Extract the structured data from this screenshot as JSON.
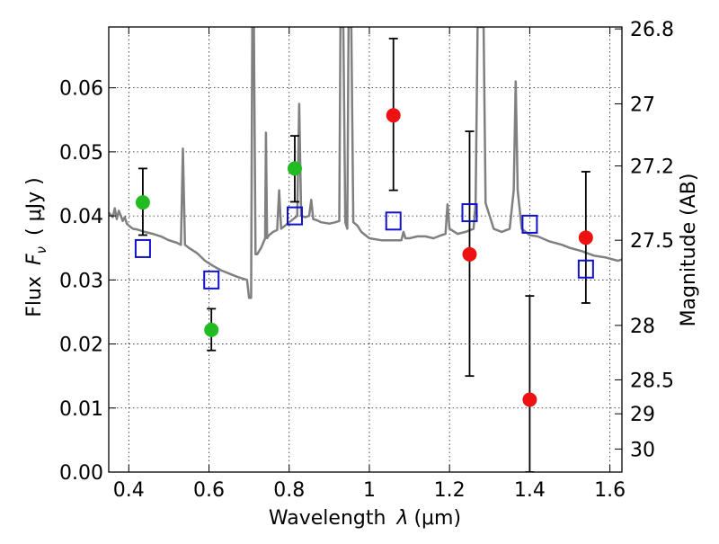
{
  "colors": {
    "spectrum": "#808080",
    "photometry_green": "#22bb22",
    "photometry_red": "#ee1111",
    "model_box": "#1111cc",
    "errorbar": "#000000"
  },
  "chart_data": {
    "type": "scatter",
    "title": "",
    "xlabel_prefix": "Wavelength",
    "xlabel_symbol": "λ",
    "xlabel_unit": "(μm)",
    "ylabel_prefix": "Flux",
    "ylabel_symbol": "F",
    "ylabel_subscript": "ν",
    "ylabel_unit": "( μJy )",
    "y2label": "Magnitude (AB)",
    "xlim": [
      0.35,
      1.63
    ],
    "ylim": [
      0.0,
      0.0695
    ],
    "grid": true,
    "x_ticks": [
      0.4,
      0.6,
      0.8,
      1.0,
      1.2,
      1.4,
      1.6
    ],
    "x_tick_labels": [
      "0.4",
      "0.6",
      "0.8",
      "1",
      "1.2",
      "1.4",
      "1.6"
    ],
    "y_ticks": [
      0.0,
      0.01,
      0.02,
      0.03,
      0.04,
      0.05,
      0.06
    ],
    "y_tick_labels": [
      "0.00",
      "0.01",
      "0.02",
      "0.03",
      "0.04",
      "0.05",
      "0.06"
    ],
    "y2_ticks": [
      {
        "label": "26.8",
        "flux": 0.0692
      },
      {
        "label": "27",
        "flux": 0.0575
      },
      {
        "label": "27.2",
        "flux": 0.0478
      },
      {
        "label": "27.5",
        "flux": 0.0362
      },
      {
        "label": "28",
        "flux": 0.0229
      },
      {
        "label": "28.5",
        "flux": 0.0144
      },
      {
        "label": "29",
        "flux": 0.0091
      },
      {
        "label": "30",
        "flux": 0.0036
      }
    ],
    "series": [
      {
        "kind": "line",
        "color": "#808080",
        "points": [
          [
            0.35,
            0.0405
          ],
          [
            0.36,
            0.0398
          ],
          [
            0.365,
            0.0412
          ],
          [
            0.37,
            0.0395
          ],
          [
            0.375,
            0.0408
          ],
          [
            0.38,
            0.04
          ],
          [
            0.385,
            0.0392
          ],
          [
            0.39,
            0.0398
          ],
          [
            0.395,
            0.0388
          ],
          [
            0.4,
            0.0385
          ],
          [
            0.41,
            0.038
          ],
          [
            0.42,
            0.0379
          ],
          [
            0.44,
            0.0375
          ],
          [
            0.46,
            0.0372
          ],
          [
            0.48,
            0.0368
          ],
          [
            0.5,
            0.0362
          ],
          [
            0.52,
            0.0358
          ],
          [
            0.53,
            0.0355
          ],
          [
            0.535,
            0.0505
          ],
          [
            0.54,
            0.0355
          ],
          [
            0.55,
            0.035
          ],
          [
            0.57,
            0.0342
          ],
          [
            0.59,
            0.033
          ],
          [
            0.61,
            0.0322
          ],
          [
            0.63,
            0.0315
          ],
          [
            0.65,
            0.031
          ],
          [
            0.67,
            0.0305
          ],
          [
            0.685,
            0.0302
          ],
          [
            0.695,
            0.03
          ],
          [
            0.7,
            0.0272
          ],
          [
            0.705,
            0.0272
          ],
          [
            0.708,
            0.0695
          ],
          [
            0.712,
            0.0695
          ],
          [
            0.716,
            0.034
          ],
          [
            0.72,
            0.034
          ],
          [
            0.73,
            0.035
          ],
          [
            0.74,
            0.0365
          ],
          [
            0.742,
            0.053
          ],
          [
            0.745,
            0.0365
          ],
          [
            0.75,
            0.037
          ],
          [
            0.76,
            0.0375
          ],
          [
            0.77,
            0.0378
          ],
          [
            0.775,
            0.044
          ],
          [
            0.78,
            0.038
          ],
          [
            0.79,
            0.0385
          ],
          [
            0.8,
            0.039
          ],
          [
            0.81,
            0.0395
          ],
          [
            0.82,
            0.04
          ],
          [
            0.825,
            0.0575
          ],
          [
            0.83,
            0.04
          ],
          [
            0.84,
            0.0398
          ],
          [
            0.85,
            0.04
          ],
          [
            0.855,
            0.0425
          ],
          [
            0.86,
            0.0395
          ],
          [
            0.87,
            0.0393
          ],
          [
            0.88,
            0.039
          ],
          [
            0.9,
            0.0388
          ],
          [
            0.915,
            0.039
          ],
          [
            0.925,
            0.0392
          ],
          [
            0.928,
            0.0695
          ],
          [
            0.935,
            0.0695
          ],
          [
            0.94,
            0.039
          ],
          [
            0.945,
            0.038
          ],
          [
            0.948,
            0.0695
          ],
          [
            0.955,
            0.0695
          ],
          [
            0.96,
            0.039
          ],
          [
            0.97,
            0.0385
          ],
          [
            0.98,
            0.0375
          ],
          [
            0.99,
            0.037
          ],
          [
            1.0,
            0.0365
          ],
          [
            1.03,
            0.0362
          ],
          [
            1.06,
            0.0362
          ],
          [
            1.08,
            0.0362
          ],
          [
            1.085,
            0.0375
          ],
          [
            1.09,
            0.0365
          ],
          [
            1.1,
            0.0365
          ],
          [
            1.12,
            0.0368
          ],
          [
            1.14,
            0.0368
          ],
          [
            1.16,
            0.0365
          ],
          [
            1.18,
            0.037
          ],
          [
            1.19,
            0.0372
          ],
          [
            1.195,
            0.0418
          ],
          [
            1.2,
            0.038
          ],
          [
            1.22,
            0.0372
          ],
          [
            1.24,
            0.0375
          ],
          [
            1.26,
            0.038
          ],
          [
            1.265,
            0.042
          ],
          [
            1.27,
            0.0695
          ],
          [
            1.285,
            0.0695
          ],
          [
            1.29,
            0.042
          ],
          [
            1.3,
            0.04
          ],
          [
            1.31,
            0.038
          ],
          [
            1.33,
            0.0375
          ],
          [
            1.35,
            0.038
          ],
          [
            1.36,
            0.044
          ],
          [
            1.365,
            0.061
          ],
          [
            1.37,
            0.044
          ],
          [
            1.38,
            0.038
          ],
          [
            1.4,
            0.037
          ],
          [
            1.42,
            0.0368
          ],
          [
            1.45,
            0.036
          ],
          [
            1.48,
            0.0355
          ],
          [
            1.5,
            0.035
          ],
          [
            1.53,
            0.0345
          ],
          [
            1.56,
            0.0338
          ],
          [
            1.59,
            0.0335
          ],
          [
            1.62,
            0.033
          ],
          [
            1.63,
            0.0332
          ]
        ]
      },
      {
        "kind": "errorbar-points",
        "color": "#22bb22",
        "points": [
          {
            "x": 0.435,
            "y": 0.0421,
            "ylo": 0.037,
            "yhi": 0.0474
          },
          {
            "x": 0.606,
            "y": 0.0222,
            "ylo": 0.019,
            "yhi": 0.0255
          },
          {
            "x": 0.814,
            "y": 0.0474,
            "ylo": 0.0422,
            "yhi": 0.0525
          }
        ]
      },
      {
        "kind": "errorbar-points",
        "color": "#ee1111",
        "points": [
          {
            "x": 1.06,
            "y": 0.0557,
            "ylo": 0.044,
            "yhi": 0.0677
          },
          {
            "x": 1.25,
            "y": 0.034,
            "ylo": 0.015,
            "yhi": 0.0532
          },
          {
            "x": 1.4,
            "y": 0.0113,
            "ylo": 0.0,
            "yhi": 0.0275
          },
          {
            "x": 1.54,
            "y": 0.0366,
            "ylo": 0.0264,
            "yhi": 0.0469
          }
        ]
      },
      {
        "kind": "squares",
        "color": "#1111cc",
        "points": [
          {
            "x": 0.435,
            "y": 0.0349
          },
          {
            "x": 0.606,
            "y": 0.03
          },
          {
            "x": 0.814,
            "y": 0.04
          },
          {
            "x": 1.06,
            "y": 0.0392
          },
          {
            "x": 1.25,
            "y": 0.0405
          },
          {
            "x": 1.4,
            "y": 0.0387
          },
          {
            "x": 1.54,
            "y": 0.0317
          }
        ]
      }
    ]
  }
}
